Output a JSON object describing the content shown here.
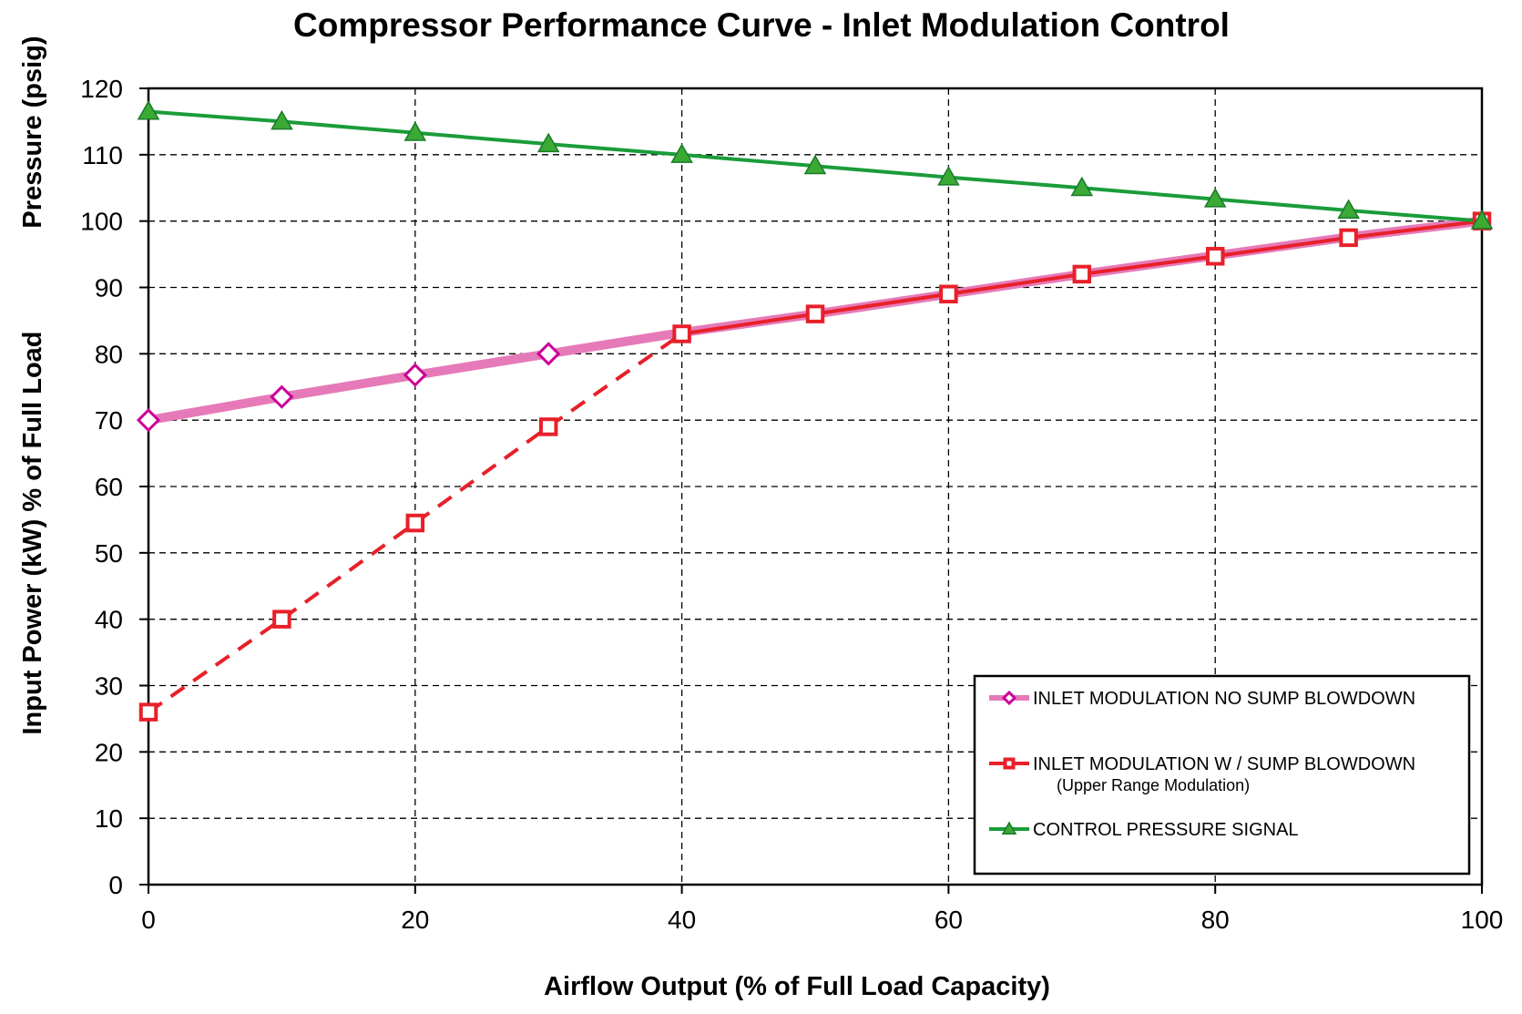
{
  "chart_data": {
    "type": "line",
    "title": "Compressor Performance Curve - Inlet Modulation Control",
    "xlabel": "Airflow  Output (% of Full  Load Capacity)",
    "ylabel_top": "Pressure (psig)",
    "ylabel_bottom": "Input Power (kW) % of Full Load",
    "xlim": [
      0,
      100
    ],
    "ylim": [
      0,
      120
    ],
    "xticks": [
      0,
      20,
      40,
      60,
      80,
      100
    ],
    "yticks": [
      0,
      10,
      20,
      30,
      40,
      50,
      60,
      70,
      80,
      90,
      100,
      110,
      120
    ],
    "x_tick_labels": [
      "0",
      "20",
      "40",
      "60",
      "80",
      "100"
    ],
    "y_tick_labels": [
      "0",
      "10",
      "20",
      "30",
      "40",
      "50",
      "60",
      "70",
      "80",
      "90",
      "100",
      "110",
      "120"
    ],
    "grid": true,
    "legend_position": "bottom-right",
    "series": [
      {
        "name": "INLET MODULATION NO SUMP BLOWDOWN",
        "color": "#e67ab8",
        "marker_color": "#cc0099",
        "marker": "diamond",
        "x": [
          0,
          10,
          20,
          30,
          40,
          50,
          60,
          70,
          80,
          90,
          100
        ],
        "y": [
          70,
          73.5,
          76.8,
          80,
          83.2,
          86,
          89,
          92,
          94.8,
          97.6,
          100
        ]
      },
      {
        "name": "INLET MODULATION W / SUMP BLOWDOWN",
        "subtitle": "(Upper Range Modulation)",
        "color": "#e8202a",
        "marker_color": "#e8202a",
        "marker": "square",
        "dashed_until_x": 40,
        "x": [
          0,
          10,
          20,
          30,
          40,
          50,
          60,
          70,
          80,
          90,
          100
        ],
        "y": [
          26,
          40,
          54.5,
          69,
          83,
          86,
          89,
          92,
          94.7,
          97.5,
          100
        ]
      },
      {
        "name": "CONTROL PRESSURE SIGNAL",
        "color": "#1a9c3a",
        "marker_color": "#3aaa35",
        "marker": "triangle",
        "x": [
          0,
          10,
          20,
          30,
          40,
          50,
          60,
          70,
          80,
          90,
          100
        ],
        "y": [
          116.5,
          115,
          113.3,
          111.6,
          110,
          108.3,
          106.6,
          105,
          103.3,
          101.6,
          100
        ]
      }
    ]
  }
}
